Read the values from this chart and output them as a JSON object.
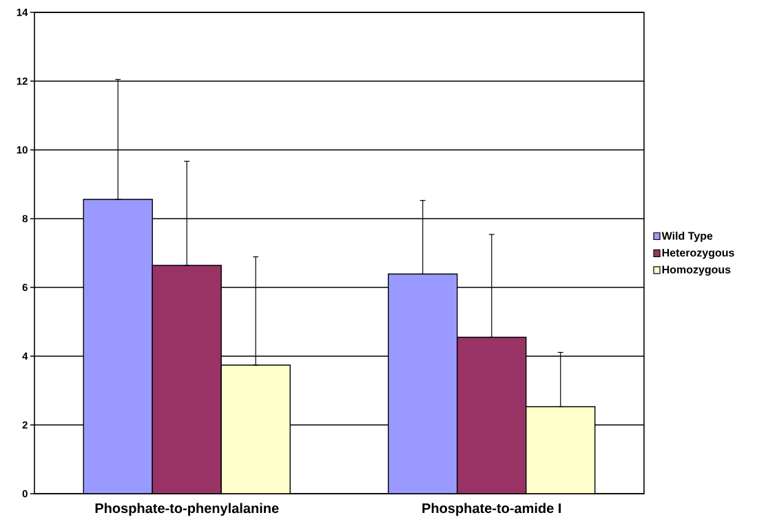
{
  "chart_data": {
    "type": "bar",
    "categories": [
      "Phosphate-to-phenylalanine",
      "Phosphate-to-amide I"
    ],
    "series": [
      {
        "name": "Wild Type",
        "color": "#9999ff",
        "values": [
          8.56,
          6.39
        ],
        "errors": [
          [
            8.56,
            12.05
          ],
          [
            6.39,
            8.53
          ]
        ]
      },
      {
        "name": "Heterozygous",
        "color": "#993366",
        "values": [
          6.64,
          4.55
        ],
        "errors": [
          [
            6.64,
            9.67
          ],
          [
            4.55,
            7.54
          ]
        ]
      },
      {
        "name": "Homozygous",
        "color": "#ffffcc",
        "values": [
          3.74,
          2.53
        ],
        "errors": [
          [
            3.74,
            6.89
          ],
          [
            2.53,
            4.11
          ]
        ]
      }
    ],
    "ylim": [
      0,
      14
    ],
    "yticks": [
      0,
      2,
      4,
      6,
      8,
      10,
      12,
      14
    ],
    "grid": "y",
    "legend": "right"
  }
}
